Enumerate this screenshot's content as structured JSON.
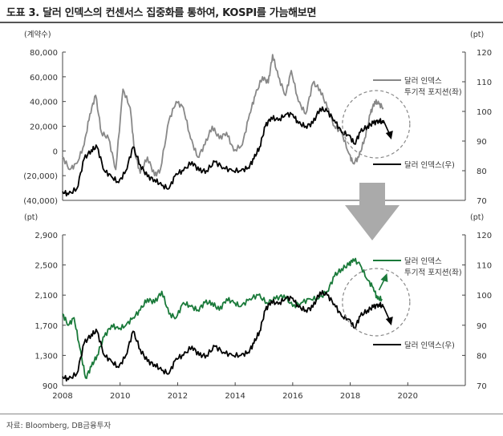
{
  "title": "도표 3. 달러 인덱스의 컨센서스 집중화를 통하여, KOSPI를 가늠해보면",
  "source": "자료: Bloomberg, DB금융투자",
  "colors": {
    "top_dxy_positioning": "#888888",
    "top_dxy": "#000000",
    "bottom_kospi": "#1a7a3a",
    "bottom_dxy": "#000000",
    "arrow_fill": "#aaaaaa",
    "circle": "#888888"
  },
  "chart_data": [
    {
      "type": "line",
      "panel": "top",
      "left_axis_label": "(계약수)",
      "right_axis_label": "(pt)",
      "x_range": [
        2008,
        2022
      ],
      "left_ylim": [
        -40000,
        80000
      ],
      "right_ylim": [
        70,
        120
      ],
      "left_ticks": [
        "80,000",
        "60,000",
        "40,000",
        "20,000",
        "0",
        "(20,000)",
        "(40,000)"
      ],
      "left_tick_values": [
        80000,
        60000,
        40000,
        20000,
        0,
        -20000,
        -40000
      ],
      "right_ticks": [
        "120",
        "110",
        "100",
        "90",
        "80",
        "70"
      ],
      "right_tick_values": [
        120,
        110,
        100,
        90,
        80,
        70
      ],
      "series": [
        {
          "name": "달러 인덱스 투기적 포지션(좌)",
          "axis": "left",
          "x": [
            2008.0,
            2008.25,
            2008.5,
            2008.75,
            2008.95,
            2009.15,
            2009.35,
            2009.6,
            2009.85,
            2010.1,
            2010.35,
            2010.5,
            2010.7,
            2010.95,
            2011.2,
            2011.4,
            2011.7,
            2011.95,
            2012.2,
            2012.45,
            2012.7,
            2012.95,
            2013.2,
            2013.45,
            2013.7,
            2013.95,
            2014.25,
            2014.5,
            2014.7,
            2014.95,
            2015.15,
            2015.3,
            2015.5,
            2015.75,
            2015.95,
            2016.2,
            2016.45,
            2016.7,
            2016.95,
            2017.2,
            2017.45,
            2017.7,
            2017.95,
            2018.1,
            2018.3,
            2018.5,
            2018.7,
            2018.85,
            2019.0,
            2019.15
          ],
          "y": [
            -5000,
            -15000,
            -10000,
            5000,
            30000,
            45000,
            15000,
            10000,
            -15000,
            50000,
            35000,
            0,
            -18000,
            -5000,
            -20000,
            -15000,
            25000,
            40000,
            35000,
            10000,
            -5000,
            5000,
            20000,
            10000,
            15000,
            0,
            5000,
            30000,
            45000,
            60000,
            55000,
            78000,
            60000,
            45000,
            65000,
            40000,
            30000,
            55000,
            50000,
            35000,
            20000,
            15000,
            -2000,
            -10000,
            -5000,
            10000,
            30000,
            40000,
            38000,
            35000
          ]
        },
        {
          "name": "달러 인덱스(우)",
          "axis": "right",
          "x": [
            2008.0,
            2008.2,
            2008.5,
            2008.75,
            2009.0,
            2009.2,
            2009.45,
            2009.7,
            2009.95,
            2010.2,
            2010.45,
            2010.7,
            2010.95,
            2011.2,
            2011.45,
            2011.7,
            2011.95,
            2012.2,
            2012.5,
            2012.75,
            2013.0,
            2013.3,
            2013.6,
            2013.9,
            2014.2,
            2014.45,
            2014.65,
            2014.85,
            2015.05,
            2015.25,
            2015.5,
            2015.75,
            2016.0,
            2016.2,
            2016.45,
            2016.7,
            2016.95,
            2017.2,
            2017.45,
            2017.7,
            2017.95,
            2018.15,
            2018.35,
            2018.6,
            2018.8,
            2019.0,
            2019.15
          ],
          "y": [
            73,
            72,
            74,
            84,
            87,
            88,
            80,
            78,
            76,
            80,
            88,
            82,
            78,
            77,
            75,
            74,
            79,
            80,
            83,
            80,
            80,
            83,
            81,
            80,
            80,
            81,
            84,
            88,
            95,
            98,
            97,
            99,
            99,
            96,
            95,
            96,
            101,
            100,
            97,
            93,
            92,
            89,
            93,
            95,
            96,
            97,
            96
          ]
        }
      ],
      "annotation_arrow_direction": "down"
    },
    {
      "type": "line",
      "panel": "bottom",
      "left_axis_label": "(pt)",
      "right_axis_label": "(pt)",
      "x_range": [
        2008,
        2022
      ],
      "x_ticks": [
        "2008",
        "2010",
        "2012",
        "2014",
        "2016",
        "2018",
        "2020"
      ],
      "x_tick_values": [
        2008,
        2010,
        2012,
        2014,
        2016,
        2018,
        2020
      ],
      "left_ylim": [
        900,
        2900
      ],
      "right_ylim": [
        70,
        120
      ],
      "left_ticks": [
        "2,900",
        "2,500",
        "2,100",
        "1,700",
        "1,300",
        "900"
      ],
      "left_tick_values": [
        2900,
        2500,
        2100,
        1700,
        1300,
        900
      ],
      "right_ticks": [
        "120",
        "110",
        "100",
        "90",
        "80",
        "70"
      ],
      "right_tick_values": [
        120,
        110,
        100,
        90,
        80,
        70
      ],
      "series": [
        {
          "name": "달러 인덱스 투기적 포지션(좌)",
          "axis": "left",
          "x": [
            2008.0,
            2008.2,
            2008.4,
            2008.6,
            2008.8,
            2009.0,
            2009.2,
            2009.45,
            2009.7,
            2009.95,
            2010.2,
            2010.45,
            2010.7,
            2010.95,
            2011.2,
            2011.45,
            2011.7,
            2011.95,
            2012.2,
            2012.45,
            2012.7,
            2012.95,
            2013.2,
            2013.45,
            2013.7,
            2013.95,
            2014.2,
            2014.5,
            2014.8,
            2015.1,
            2015.4,
            2015.7,
            2016.0,
            2016.3,
            2016.6,
            2016.9,
            2017.2,
            2017.45,
            2017.7,
            2017.95,
            2018.1,
            2018.35,
            2018.6,
            2018.8,
            2018.95,
            2019.1
          ],
          "y": [
            1850,
            1700,
            1800,
            1400,
            1000,
            1150,
            1300,
            1550,
            1700,
            1650,
            1700,
            1800,
            1900,
            2050,
            2000,
            2150,
            1850,
            1800,
            2000,
            1950,
            1900,
            2000,
            2000,
            1900,
            2050,
            2000,
            1950,
            2050,
            2100,
            2000,
            2050,
            2100,
            1950,
            2000,
            2050,
            2050,
            2150,
            2350,
            2450,
            2500,
            2580,
            2500,
            2300,
            2200,
            2050,
            2050
          ]
        },
        {
          "name": "달러 인덱스(우)",
          "axis": "right",
          "x": [
            2008.0,
            2008.2,
            2008.5,
            2008.75,
            2009.0,
            2009.2,
            2009.45,
            2009.7,
            2009.95,
            2010.2,
            2010.45,
            2010.7,
            2010.95,
            2011.2,
            2011.45,
            2011.7,
            2011.95,
            2012.2,
            2012.5,
            2012.75,
            2013.0,
            2013.3,
            2013.6,
            2013.9,
            2014.2,
            2014.45,
            2014.65,
            2014.85,
            2015.05,
            2015.25,
            2015.5,
            2015.75,
            2016.0,
            2016.2,
            2016.45,
            2016.7,
            2016.95,
            2017.2,
            2017.45,
            2017.7,
            2017.95,
            2018.15,
            2018.35,
            2018.6,
            2018.8,
            2019.0,
            2019.15
          ],
          "y": [
            73,
            72,
            74,
            84,
            87,
            88,
            80,
            78,
            76,
            80,
            88,
            82,
            78,
            77,
            75,
            74,
            79,
            80,
            83,
            80,
            80,
            83,
            81,
            80,
            80,
            81,
            84,
            88,
            95,
            98,
            97,
            99,
            99,
            96,
            95,
            96,
            101,
            100,
            97,
            93,
            92,
            89,
            93,
            95,
            96,
            97,
            96
          ]
        }
      ],
      "annotation_arrow_direction": "down",
      "annotation_up_arrow": true
    }
  ]
}
